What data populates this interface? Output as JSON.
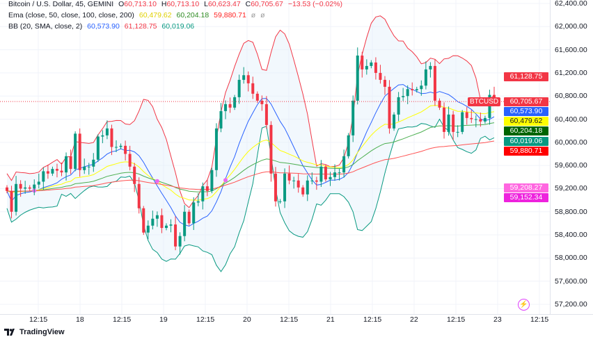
{
  "legend": {
    "symbol": "Bitcoin / U.S. Dollar, 45, GEMINI",
    "o_label": "O",
    "o": "60,713.10",
    "h_label": "H",
    "h": "60,713.10",
    "l_label": "L",
    "l": "60,623.47",
    "c_label": "C",
    "c": "60,705.67",
    "change": "−13.53 (−0.02%)",
    "ema_title": "Ema (close, 50, close, 100, close, 200)",
    "ema50": "60,479.62",
    "ema100": "60,204.18",
    "ema200": "59,880.71",
    "ema_extra1": "ø",
    "ema_extra2": "ø",
    "bb_title": "BB (20, SMA, close, 2)",
    "bb_basis": "60,573.90",
    "bb_upper": "61,128.75",
    "bb_lower": "60,019.06"
  },
  "symbol_tag": "BTCUSD",
  "price_labels": [
    {
      "text": "61,128.75",
      "price": 61128.75,
      "color": "#f23645"
    },
    {
      "text": "60,705.67",
      "price": 60705.67,
      "color": "#f23645"
    },
    {
      "text": "60,573.90",
      "price": 60573.9,
      "color": "#2962ff"
    },
    {
      "text": "60,479.62",
      "price": 60479.62,
      "color": "#ffff00",
      "text_color": "#131722"
    },
    {
      "text": "60,204.18",
      "price": 60204.18,
      "color": "#006400"
    },
    {
      "text": "60,019.06",
      "price": 60019.06,
      "color": "#089981"
    },
    {
      "text": "59,880.71",
      "price": 59880.71,
      "color": "#ff0000"
    },
    {
      "text": "59,208.27",
      "price": 59208.27,
      "color": "#ff66e0"
    },
    {
      "text": "59,152.34",
      "price": 59152.34,
      "color": "#ee22dd"
    }
  ],
  "footer": {
    "logo_text": "TradingView",
    "logo_icon": "tradingview-logo-icon",
    "alert_icon": "lightning-icon"
  },
  "colors": {
    "up": "#089981",
    "down": "#f23645",
    "bb_upper": "#f23645",
    "bb_basis": "#2962ff",
    "bb_lower": "#089981",
    "bb_fill": "#e3effa",
    "ema50": "#ffff00",
    "ema100": "#4caf50",
    "ema200": "#ff5252",
    "cross": "#ee66ee"
  },
  "chart_data": {
    "type": "candlestick",
    "symbol": "BTCUSD",
    "interval": "45",
    "ylim": [
      57100,
      62500
    ],
    "y_ticks": [
      "62,400.00",
      "62,000.00",
      "61,600.00",
      "61,200.00",
      "60,800.00",
      "60,400.00",
      "60,000.00",
      "59,600.00",
      "59,200.00",
      "58,800.00",
      "58,400.00",
      "58,000.00",
      "57,600.00",
      "57,200.00"
    ],
    "x_ticks": [
      "12:15",
      "18",
      "12:15",
      "19",
      "12:15",
      "20",
      "12:15",
      "21",
      "12:15",
      "22",
      "12:15",
      "23",
      "12:15"
    ],
    "last_price": 60705.67,
    "closes": [
      59160,
      58800,
      59280,
      59200,
      59220,
      59200,
      59270,
      59320,
      59500,
      59460,
      59540,
      59510,
      59480,
      59760,
      59540,
      60150,
      59520,
      59580,
      59580,
      59700,
      60100,
      60120,
      60240,
      59920,
      59920,
      59940,
      59800,
      59580,
      59280,
      58860,
      58440,
      58560,
      58680,
      58740,
      58520,
      58560,
      58580,
      58200,
      58380,
      58800,
      58600,
      58960,
      58980,
      59240,
      59160,
      59520,
      60240,
      60540,
      60660,
      60600,
      60780,
      61080,
      61160,
      61020,
      60840,
      60720,
      60660,
      60300,
      59460,
      58980,
      58980,
      59460,
      59340,
      59340,
      59220,
      59100,
      59340,
      59340,
      59320,
      59580,
      59360,
      59400,
      59480,
      59480,
      59760,
      60120,
      60720,
      61500,
      61260,
      61320,
      61380,
      61200,
      61080,
      60960,
      60240,
      60480,
      60780,
      60800,
      60920,
      60900,
      60920,
      60980,
      61260,
      61320,
      60720,
      60600,
      60180,
      60480,
      60180,
      60180,
      60520,
      60420,
      60400,
      60400,
      60360,
      60420,
      60820,
      60705.67
    ]
  }
}
